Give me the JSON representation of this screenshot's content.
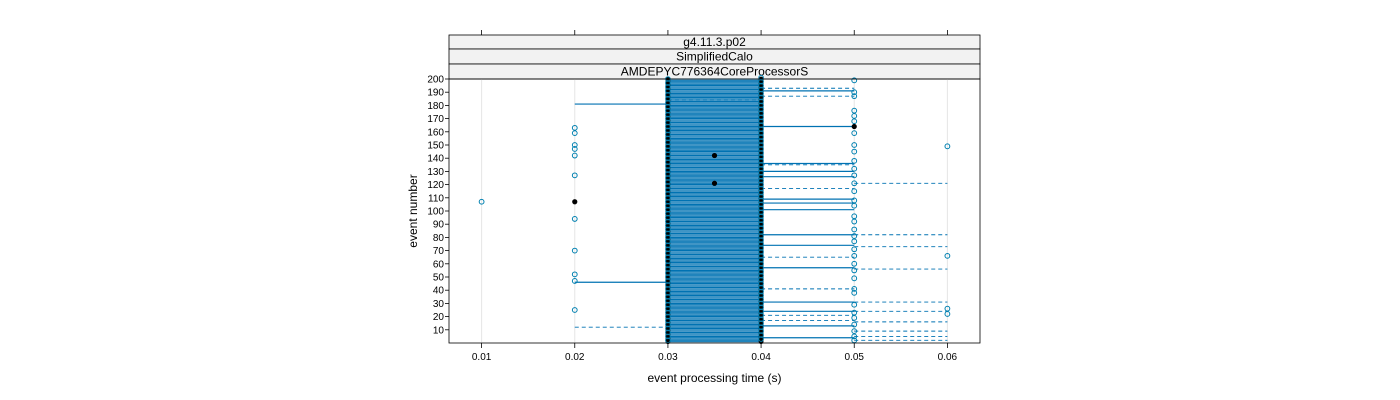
{
  "chart_data": {
    "type": "scatter",
    "strips": [
      "g4.11.3.p02",
      "SimplifiedCalo",
      "AMDEPYC776364CoreProcessorS"
    ],
    "xlabel": "event processing time (s)",
    "ylabel": "event number",
    "xlim": [
      0.0065,
      0.0635
    ],
    "ylim": [
      0,
      200
    ],
    "x_ticks": [
      0.01,
      0.02,
      0.03,
      0.04,
      0.05,
      0.06
    ],
    "x_tick_labels": [
      "0.01",
      "0.02",
      "0.03",
      "0.04",
      "0.05",
      "0.06"
    ],
    "y_ticks": [
      10,
      20,
      30,
      40,
      50,
      60,
      70,
      80,
      90,
      100,
      110,
      120,
      130,
      140,
      150,
      160,
      170,
      180,
      190,
      200
    ],
    "y_tick_labels": [
      "10",
      "20",
      "30",
      "40",
      "50",
      "60",
      "70",
      "80",
      "90",
      "100",
      "110",
      "120",
      "130",
      "140",
      "150",
      "160",
      "170",
      "180",
      "190",
      "200"
    ],
    "grid": "vertical",
    "colors": {
      "points": "#0080b0",
      "filled_points": "#000000",
      "lines": "#0072b2",
      "strip_bg": "#f2f2f2"
    },
    "filled_points": [
      {
        "x": 0.02,
        "y": 107
      },
      {
        "x": 0.035,
        "y": 142
      },
      {
        "x": 0.035,
        "y": 121
      },
      {
        "x": 0.05,
        "y": 164
      }
    ],
    "open_points": [
      {
        "x": 0.01,
        "y": 107
      },
      {
        "x": 0.02,
        "y": 163
      },
      {
        "x": 0.02,
        "y": 159
      },
      {
        "x": 0.02,
        "y": 150
      },
      {
        "x": 0.02,
        "y": 147
      },
      {
        "x": 0.02,
        "y": 142
      },
      {
        "x": 0.02,
        "y": 127
      },
      {
        "x": 0.02,
        "y": 94
      },
      {
        "x": 0.02,
        "y": 70
      },
      {
        "x": 0.02,
        "y": 52
      },
      {
        "x": 0.02,
        "y": 47
      },
      {
        "x": 0.02,
        "y": 25
      },
      {
        "x": 0.05,
        "y": 199
      },
      {
        "x": 0.05,
        "y": 190
      },
      {
        "x": 0.05,
        "y": 187
      },
      {
        "x": 0.05,
        "y": 176
      },
      {
        "x": 0.05,
        "y": 172
      },
      {
        "x": 0.05,
        "y": 168
      },
      {
        "x": 0.05,
        "y": 159
      },
      {
        "x": 0.05,
        "y": 150
      },
      {
        "x": 0.05,
        "y": 145
      },
      {
        "x": 0.05,
        "y": 138
      },
      {
        "x": 0.05,
        "y": 132
      },
      {
        "x": 0.05,
        "y": 127
      },
      {
        "x": 0.05,
        "y": 121
      },
      {
        "x": 0.05,
        "y": 115
      },
      {
        "x": 0.05,
        "y": 108
      },
      {
        "x": 0.05,
        "y": 104
      },
      {
        "x": 0.05,
        "y": 96
      },
      {
        "x": 0.05,
        "y": 92
      },
      {
        "x": 0.05,
        "y": 86
      },
      {
        "x": 0.05,
        "y": 81
      },
      {
        "x": 0.05,
        "y": 77
      },
      {
        "x": 0.05,
        "y": 71
      },
      {
        "x": 0.05,
        "y": 66
      },
      {
        "x": 0.05,
        "y": 60
      },
      {
        "x": 0.05,
        "y": 55
      },
      {
        "x": 0.05,
        "y": 49
      },
      {
        "x": 0.05,
        "y": 41
      },
      {
        "x": 0.05,
        "y": 38
      },
      {
        "x": 0.05,
        "y": 29
      },
      {
        "x": 0.05,
        "y": 23
      },
      {
        "x": 0.05,
        "y": 19
      },
      {
        "x": 0.05,
        "y": 14
      },
      {
        "x": 0.05,
        "y": 9
      },
      {
        "x": 0.05,
        "y": 5
      },
      {
        "x": 0.05,
        "y": 2
      },
      {
        "x": 0.06,
        "y": 149
      },
      {
        "x": 0.06,
        "y": 66
      },
      {
        "x": 0.06,
        "y": 26
      },
      {
        "x": 0.06,
        "y": 22
      }
    ],
    "solid_segments": [
      {
        "x1": 0.02,
        "x2": 0.03,
        "y": 181
      },
      {
        "x1": 0.02,
        "x2": 0.03,
        "y": 46
      },
      {
        "x1": 0.04,
        "x2": 0.05,
        "y": 191
      },
      {
        "x1": 0.04,
        "x2": 0.05,
        "y": 164
      },
      {
        "x1": 0.04,
        "x2": 0.05,
        "y": 136
      },
      {
        "x1": 0.04,
        "x2": 0.05,
        "y": 130
      },
      {
        "x1": 0.04,
        "x2": 0.05,
        "y": 126
      },
      {
        "x1": 0.04,
        "x2": 0.05,
        "y": 109
      },
      {
        "x1": 0.04,
        "x2": 0.05,
        "y": 106
      },
      {
        "x1": 0.04,
        "x2": 0.05,
        "y": 101
      },
      {
        "x1": 0.04,
        "x2": 0.05,
        "y": 82
      },
      {
        "x1": 0.04,
        "x2": 0.05,
        "y": 74
      },
      {
        "x1": 0.04,
        "x2": 0.05,
        "y": 57
      },
      {
        "x1": 0.04,
        "x2": 0.05,
        "y": 31
      },
      {
        "x1": 0.04,
        "x2": 0.05,
        "y": 24
      },
      {
        "x1": 0.04,
        "x2": 0.05,
        "y": 13
      },
      {
        "x1": 0.04,
        "x2": 0.05,
        "y": 4
      }
    ],
    "dashed_segments": [
      {
        "x1": 0.03,
        "x2": 0.04,
        "y": 184
      },
      {
        "x1": 0.04,
        "x2": 0.05,
        "y": 193
      },
      {
        "x1": 0.04,
        "x2": 0.05,
        "y": 187
      },
      {
        "x1": 0.04,
        "x2": 0.05,
        "y": 135
      },
      {
        "x1": 0.04,
        "x2": 0.05,
        "y": 117
      },
      {
        "x1": 0.04,
        "x2": 0.05,
        "y": 65
      },
      {
        "x1": 0.04,
        "x2": 0.05,
        "y": 41
      },
      {
        "x1": 0.04,
        "x2": 0.05,
        "y": 21
      },
      {
        "x1": 0.04,
        "x2": 0.05,
        "y": 17
      },
      {
        "x1": 0.05,
        "x2": 0.06,
        "y": 121
      },
      {
        "x1": 0.05,
        "x2": 0.06,
        "y": 82
      },
      {
        "x1": 0.05,
        "x2": 0.06,
        "y": 73
      },
      {
        "x1": 0.05,
        "x2": 0.06,
        "y": 56
      },
      {
        "x1": 0.05,
        "x2": 0.06,
        "y": 31
      },
      {
        "x1": 0.05,
        "x2": 0.06,
        "y": 24
      },
      {
        "x1": 0.05,
        "x2": 0.06,
        "y": 16
      },
      {
        "x1": 0.05,
        "x2": 0.06,
        "y": 9
      },
      {
        "x1": 0.05,
        "x2": 0.06,
        "y": 5
      },
      {
        "x1": 0.05,
        "x2": 0.06,
        "y": 2
      },
      {
        "x1": 0.02,
        "x2": 0.03,
        "y": 12
      }
    ]
  }
}
